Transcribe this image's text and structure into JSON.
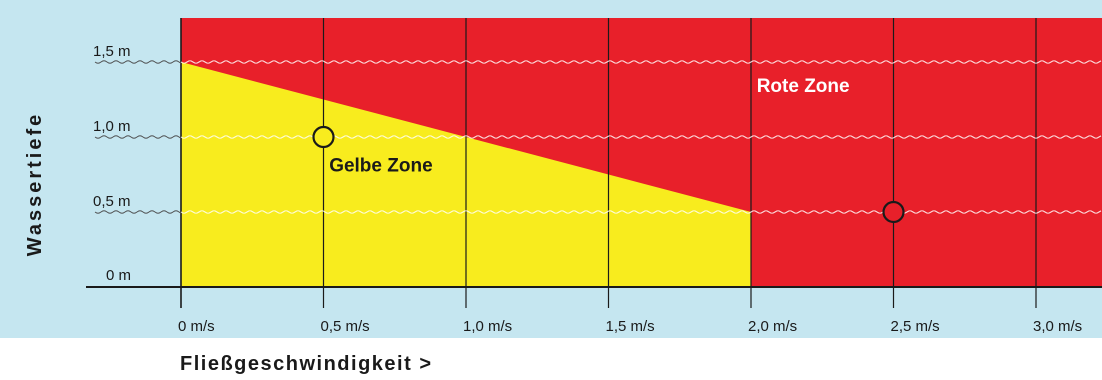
{
  "chart_data": {
    "type": "area",
    "title": "",
    "xlabel": "Fließgeschwindigkeit  >",
    "ylabel": "Wassertiefe",
    "xlim": [
      0,
      3.1
    ],
    "ylim": [
      0,
      1.5
    ],
    "x_ticks": [
      0,
      0.5,
      1.0,
      1.5,
      2.0,
      2.5,
      3.0
    ],
    "x_tick_labels": [
      "0 m/s",
      "0,5 m/s",
      "1,0 m/s",
      "1,5 m/s",
      "2,0 m/s",
      "2,5 m/s",
      "3,0 m/s"
    ],
    "y_ticks": [
      0,
      0.5,
      1.0,
      1.5
    ],
    "y_tick_labels": [
      "0 m",
      "0,5 m",
      "1,0 m",
      "1,5 m"
    ],
    "grid": true,
    "zones": [
      {
        "name": "Gelbe Zone",
        "label": "Gelbe Zone",
        "color": "#f8ec1e",
        "boundary": [
          [
            0,
            1.5
          ],
          [
            2.0,
            0.5
          ]
        ],
        "x_max": 2.0
      },
      {
        "name": "Rote Zone",
        "label": "Rote Zone",
        "color": "#e8202a"
      }
    ],
    "points": [
      {
        "x": 0.5,
        "y": 1.0,
        "zone": "Gelbe Zone"
      },
      {
        "x": 2.5,
        "y": 0.5,
        "zone": "Rote Zone"
      }
    ],
    "background_color": "#c5e6f0",
    "label_colors": {
      "Gelbe Zone": "#1a1a1a",
      "Rote Zone": "#ffffff"
    }
  }
}
